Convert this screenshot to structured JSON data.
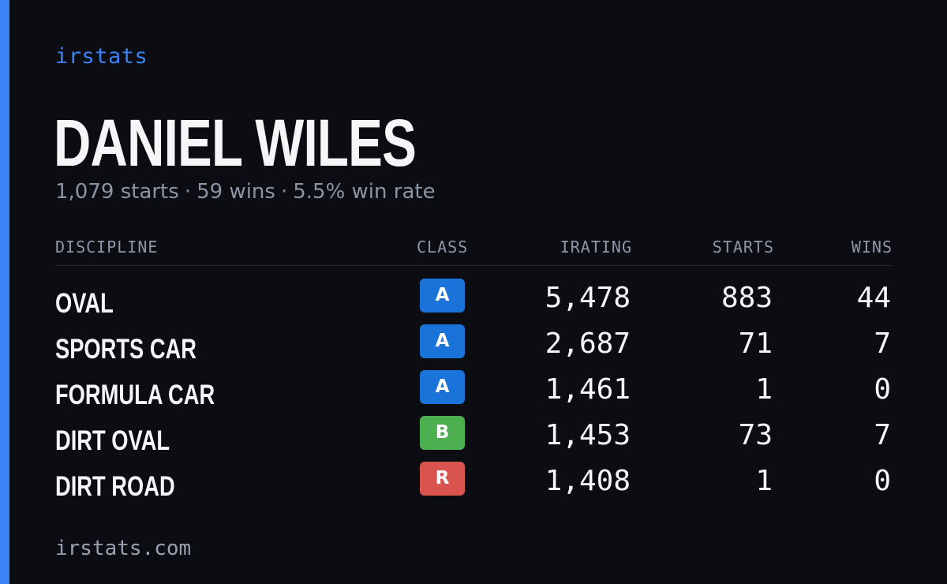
{
  "brand": "irstats",
  "driver": {
    "name": "DANIEL WILES",
    "summary": {
      "starts": "1,079 starts",
      "wins": "59 wins",
      "win_rate": "5.5% win rate",
      "separator": "·"
    }
  },
  "table": {
    "headers": {
      "discipline": "DISCIPLINE",
      "class": "CLASS",
      "irating": "IRATING",
      "starts": "STARTS",
      "wins": "WINS"
    },
    "rows": [
      {
        "discipline": "OVAL",
        "class": "A",
        "class_color": "#1a73d9",
        "irating": "5,478",
        "starts": "883",
        "wins": "44"
      },
      {
        "discipline": "SPORTS CAR",
        "class": "A",
        "class_color": "#1a73d9",
        "irating": "2,687",
        "starts": "71",
        "wins": "7"
      },
      {
        "discipline": "FORMULA CAR",
        "class": "A",
        "class_color": "#1a73d9",
        "irating": "1,461",
        "starts": "1",
        "wins": "0"
      },
      {
        "discipline": "DIRT OVAL",
        "class": "B",
        "class_color": "#4caf50",
        "irating": "1,453",
        "starts": "73",
        "wins": "7"
      },
      {
        "discipline": "DIRT ROAD",
        "class": "R",
        "class_color": "#d9534f",
        "irating": "1,408",
        "starts": "1",
        "wins": "0"
      }
    ]
  },
  "footer": {
    "url": "irstats.com"
  },
  "colors": {
    "background": "#0b0d13",
    "accent": "#3b82f6",
    "muted_text": "#8c93a3"
  }
}
